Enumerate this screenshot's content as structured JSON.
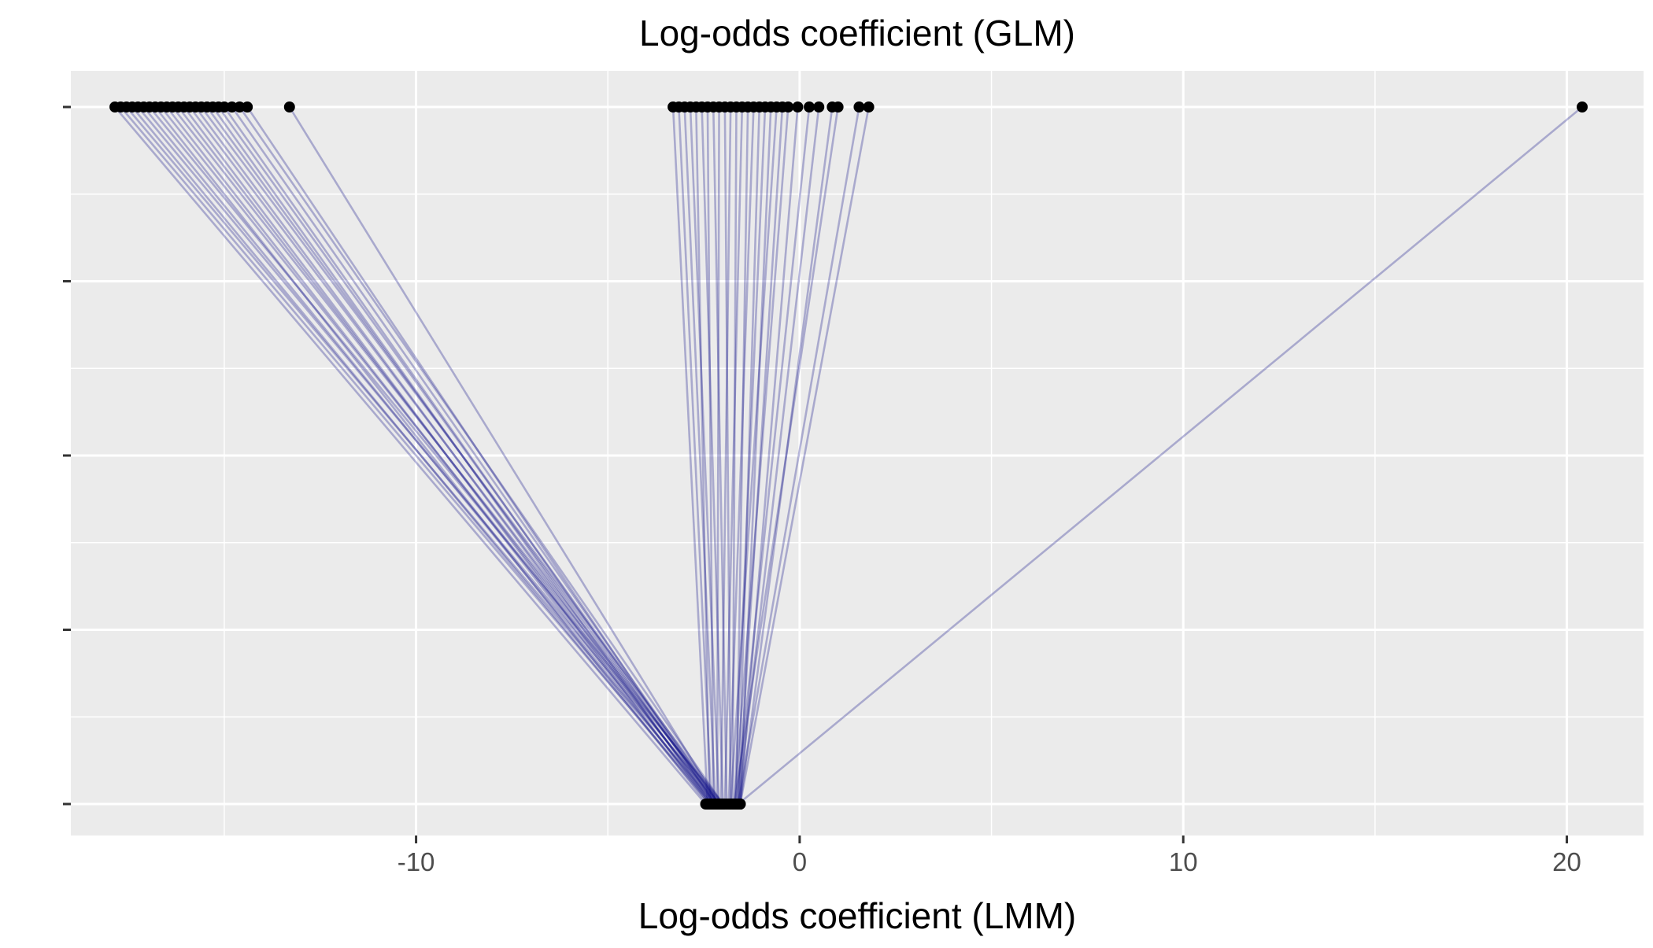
{
  "chart_data": {
    "type": "line",
    "chart_kind": "parallel slope plot (glm vs lmm coefficients)",
    "top_axis_title": "Log-odds coefficient (GLM)",
    "xlabel": "Log-odds coefficient (LMM)",
    "xlim": [
      -19.0,
      22.0
    ],
    "x_ticks": [
      -10,
      0,
      10,
      20
    ],
    "x_tick_labels": [
      "-10",
      "0",
      "10",
      "20"
    ],
    "y_levels": [
      "GLM",
      "",
      "",
      "",
      "LMM"
    ],
    "grid": true,
    "legend": "none",
    "colors": {
      "panel_background": "#ebebeb",
      "grid_line": "#ffffff",
      "segment": "#000080",
      "point": "#000000",
      "tick_text": "#4d4d4d"
    },
    "segment_opacity": 0.28,
    "segments": [
      {
        "glm": -17.85,
        "lmm": -2.45
      },
      {
        "glm": -17.7,
        "lmm": -2.3
      },
      {
        "glm": -17.55,
        "lmm": -2.2
      },
      {
        "glm": -17.4,
        "lmm": -2.35
      },
      {
        "glm": -17.25,
        "lmm": -2.1
      },
      {
        "glm": -17.1,
        "lmm": -2.25
      },
      {
        "glm": -16.95,
        "lmm": -2.0
      },
      {
        "glm": -16.8,
        "lmm": -2.4
      },
      {
        "glm": -16.65,
        "lmm": -2.15
      },
      {
        "glm": -16.5,
        "lmm": -2.3
      },
      {
        "glm": -16.35,
        "lmm": -2.05
      },
      {
        "glm": -16.2,
        "lmm": -2.2
      },
      {
        "glm": -16.05,
        "lmm": -2.35
      },
      {
        "glm": -15.9,
        "lmm": -2.1
      },
      {
        "glm": -15.75,
        "lmm": -2.25
      },
      {
        "glm": -15.6,
        "lmm": -2.0
      },
      {
        "glm": -15.45,
        "lmm": -2.15
      },
      {
        "glm": -15.3,
        "lmm": -2.3
      },
      {
        "glm": -15.15,
        "lmm": -2.1
      },
      {
        "glm": -15.0,
        "lmm": -2.2
      },
      {
        "glm": -14.8,
        "lmm": -2.1
      },
      {
        "glm": -14.6,
        "lmm": -2.0
      },
      {
        "glm": -14.4,
        "lmm": -2.2
      },
      {
        "glm": -13.3,
        "lmm": -2.1
      },
      {
        "glm": -3.3,
        "lmm": -2.4
      },
      {
        "glm": -3.15,
        "lmm": -2.3
      },
      {
        "glm": -3.0,
        "lmm": -2.2
      },
      {
        "glm": -2.85,
        "lmm": -2.1
      },
      {
        "glm": -2.7,
        "lmm": -2.35
      },
      {
        "glm": -2.55,
        "lmm": -2.0
      },
      {
        "glm": -2.4,
        "lmm": -2.25
      },
      {
        "glm": -2.25,
        "lmm": -1.9
      },
      {
        "glm": -2.1,
        "lmm": -2.15
      },
      {
        "glm": -1.95,
        "lmm": -1.8
      },
      {
        "glm": -1.8,
        "lmm": -2.05
      },
      {
        "glm": -1.65,
        "lmm": -1.75
      },
      {
        "glm": -1.5,
        "lmm": -1.95
      },
      {
        "glm": -1.35,
        "lmm": -1.65
      },
      {
        "glm": -1.2,
        "lmm": -1.85
      },
      {
        "glm": -1.05,
        "lmm": -1.6
      },
      {
        "glm": -0.9,
        "lmm": -1.7
      },
      {
        "glm": -0.75,
        "lmm": -1.55
      },
      {
        "glm": -0.6,
        "lmm": -1.8
      },
      {
        "glm": -0.45,
        "lmm": -1.6
      },
      {
        "glm": -0.3,
        "lmm": -1.7
      },
      {
        "glm": -0.05,
        "lmm": -1.55
      },
      {
        "glm": 0.25,
        "lmm": -1.65
      },
      {
        "glm": 0.5,
        "lmm": -1.6
      },
      {
        "glm": 0.85,
        "lmm": -1.55
      },
      {
        "glm": 1.0,
        "lmm": -1.7
      },
      {
        "glm": 1.55,
        "lmm": -1.6
      },
      {
        "glm": 1.8,
        "lmm": -1.55
      },
      {
        "glm": 20.4,
        "lmm": -1.6
      }
    ]
  }
}
